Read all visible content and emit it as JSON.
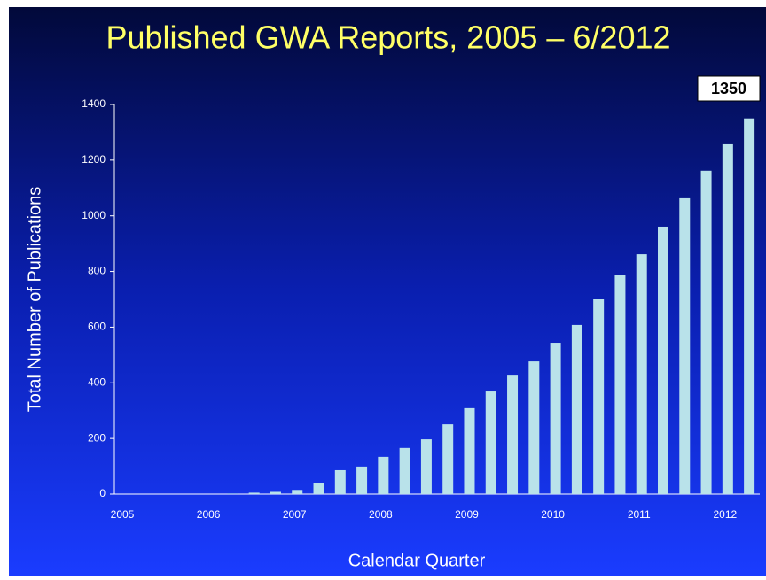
{
  "chart_data": {
    "type": "bar",
    "title": "Published GWA Reports, 2005 – 6/2012",
    "y_label": "Total Number of Publications",
    "x_label": "Calendar Quarter",
    "annotation": "1350",
    "categories": [
      "2005",
      null,
      null,
      null,
      "2006",
      null,
      null,
      null,
      "2007",
      null,
      null,
      null,
      "2008",
      null,
      null,
      null,
      "2009",
      null,
      null,
      null,
      "2010",
      null,
      null,
      null,
      "2011",
      null,
      null,
      null,
      "2012",
      null
    ],
    "values": [
      0,
      0,
      0,
      0,
      0,
      2,
      5,
      8,
      15,
      41,
      86,
      99,
      134,
      166,
      197,
      251,
      309,
      369,
      426,
      477,
      544,
      608,
      700,
      789,
      862,
      961,
      1063,
      1162,
      1257,
      1350
    ],
    "color": "#b9e2ea",
    "ylim": [
      0,
      1400
    ],
    "yticks": [
      0,
      200,
      400,
      600,
      800,
      1000,
      1200,
      1400
    ],
    "grid": false
  }
}
